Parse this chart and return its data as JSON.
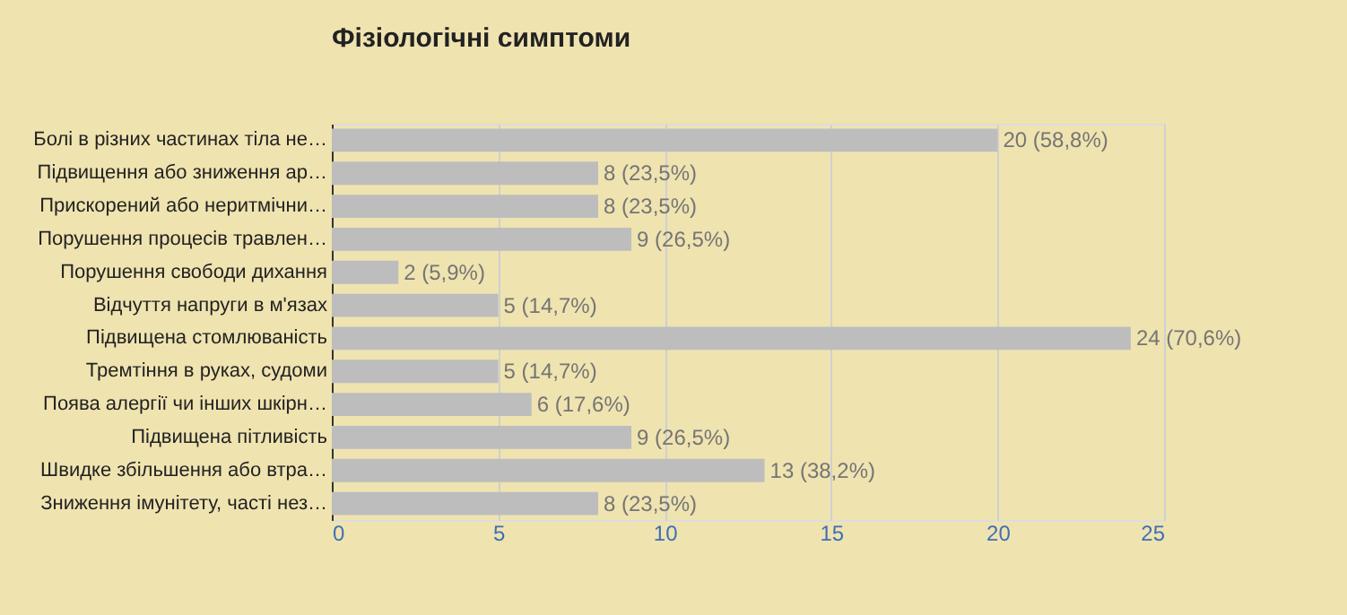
{
  "chart_data": {
    "type": "bar",
    "orientation": "horizontal",
    "title": "Фізіологічні симптоми",
    "categories": [
      "Болі в різних частинах тіла не…",
      "Підвищення або зниження ар…",
      "Прискорений або неритмічни…",
      "Порушення процесів травлен…",
      "Порушення свободи дихання",
      "Відчуття напруги в м'язах",
      "Підвищена стомлюваність",
      "Тремтіння в руках, судоми",
      "Поява алергії чи інших шкірн…",
      "Підвищена пітливість",
      "Швидке збільшення або втра…",
      "Зниження імунітету, часті нез…"
    ],
    "values": [
      20,
      8,
      8,
      9,
      2,
      5,
      24,
      5,
      6,
      9,
      13,
      8
    ],
    "value_labels": [
      "20 (58,8%)",
      "8 (23,5%)",
      "8 (23,5%)",
      "9 (26,5%)",
      "2 (5,9%)",
      "5 (14,7%)",
      "24 (70,6%)",
      "5 (14,7%)",
      "6 (17,6%)",
      "9 (26,5%)",
      "13 (38,2%)",
      "8 (23,5%)"
    ],
    "color": "#bdbdbd",
    "xlim": [
      0,
      25
    ],
    "xticks": [
      0,
      5,
      10,
      15,
      20,
      25
    ],
    "grid": "x"
  }
}
